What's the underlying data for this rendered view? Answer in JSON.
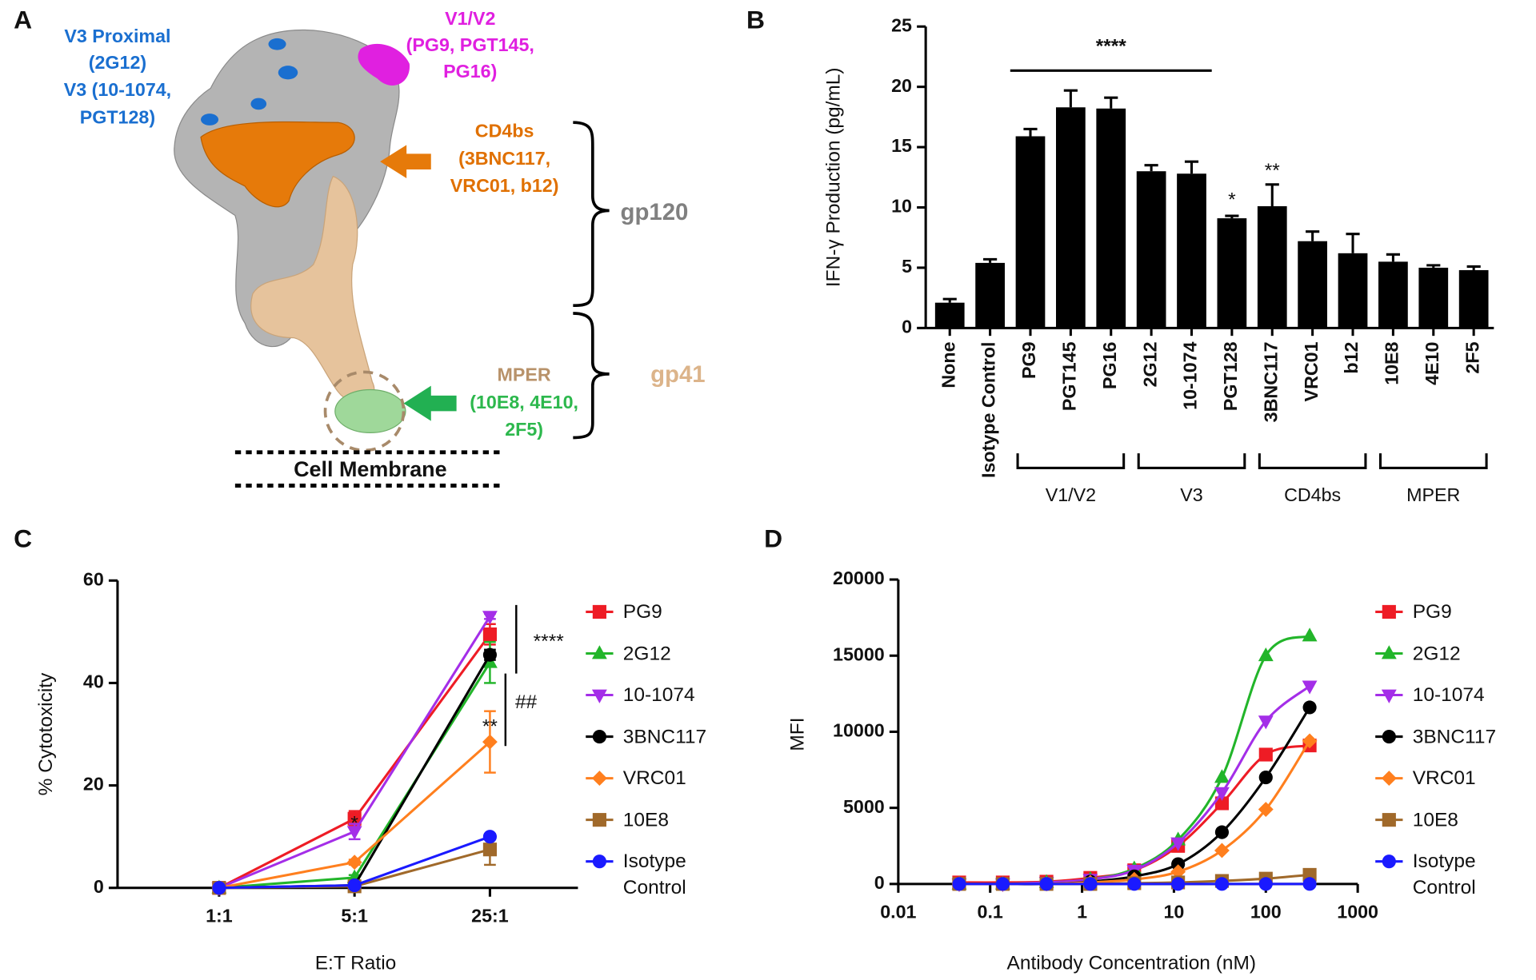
{
  "panel_labels": [
    "A",
    "B",
    "C",
    "D"
  ],
  "diagram": {
    "v3": [
      "V3 Proximal",
      "(2G12)",
      "V3 (10-1074,",
      "PGT128)"
    ],
    "v1v2": [
      "V1/V2",
      "(PG9, PGT145,",
      "PG16)"
    ],
    "cd4bs": [
      "CD4bs",
      "(3BNC117,",
      "VRC01, b12)"
    ],
    "mper": [
      "MPER",
      "(10E8, 4E10,",
      "2F5)"
    ],
    "gp120": "gp120",
    "gp41": "gp41",
    "membrane": "Cell Membrane"
  },
  "chart_data": [
    {
      "type": "bar",
      "y_label": "IFN-γ Production (pg/mL)",
      "categories": [
        "None",
        "Isotype Control",
        "PG9",
        "PGT145",
        "PG16",
        "2G12",
        "10-1074",
        "PGT128",
        "3BNC117",
        "VRC01",
        "b12",
        "10E8",
        "4E10",
        "2F5"
      ],
      "values": [
        2.1,
        5.4,
        15.9,
        18.3,
        18.2,
        13.0,
        12.8,
        9.1,
        10.1,
        7.2,
        6.2,
        5.5,
        5.0,
        4.8
      ],
      "errors": [
        0.3,
        0.3,
        0.6,
        1.4,
        0.9,
        0.5,
        1.0,
        0.2,
        1.8,
        0.8,
        1.6,
        0.6,
        0.2,
        0.3
      ],
      "color": "#000000",
      "ylim": [
        0,
        25
      ],
      "yticks": [
        0,
        5,
        10,
        15,
        20,
        25
      ],
      "groups": [
        {
          "label": "V1/V2",
          "categories": [
            "PG9",
            "PGT145",
            "PG16"
          ]
        },
        {
          "label": "V3",
          "categories": [
            "2G12",
            "10-1074",
            "PGT128"
          ]
        },
        {
          "label": "CD4bs",
          "categories": [
            "3BNC117",
            "VRC01",
            "b12"
          ]
        },
        {
          "label": "MPER",
          "categories": [
            "10E8",
            "4E10",
            "2F5"
          ]
        }
      ],
      "annotations": [
        "****",
        "*",
        "**"
      ]
    },
    {
      "type": "line",
      "x_label": "E:T Ratio",
      "y_label": "% Cytotoxicity",
      "categories": [
        "1:1",
        "5:1",
        "25:1"
      ],
      "ylim": [
        0,
        60
      ],
      "yticks": [
        0,
        20,
        40,
        60
      ],
      "series": [
        {
          "name": "PG9",
          "color": "#ee1c25",
          "marker": "square",
          "values": [
            0,
            13.5,
            49.5
          ],
          "errors": [
            0,
            1.5,
            2
          ]
        },
        {
          "name": "2G12",
          "color": "#22b52a",
          "marker": "triangle-up",
          "values": [
            0,
            2,
            44
          ],
          "errors": [
            0,
            0.5,
            4
          ]
        },
        {
          "name": "10-1074",
          "color": "#a42ee8",
          "marker": "triangle-down",
          "values": [
            0,
            11,
            53
          ],
          "errors": [
            0,
            1.5,
            0.5
          ]
        },
        {
          "name": "3BNC117",
          "color": "#000000",
          "marker": "circle",
          "values": [
            0,
            0.5,
            45.5
          ],
          "errors": [
            0,
            0.3,
            1
          ]
        },
        {
          "name": "VRC01",
          "color": "#ff7f1e",
          "marker": "diamond",
          "values": [
            0,
            5,
            28.5
          ],
          "errors": [
            0,
            0.5,
            6
          ]
        },
        {
          "name": "10E8",
          "color": "#a0692a",
          "marker": "square",
          "values": [
            0,
            0.3,
            7.5
          ],
          "errors": [
            0,
            0.2,
            3
          ]
        },
        {
          "name": "Isotype Control",
          "color": "#1a1aff",
          "marker": "circle",
          "values": [
            0,
            0.5,
            10
          ],
          "errors": [
            0,
            0.2,
            0.5
          ]
        }
      ],
      "annotations": [
        "*",
        "**",
        "****",
        "##"
      ]
    },
    {
      "type": "scatter",
      "x_label": "Antibody Concentration (nM)",
      "y_label": "MFI",
      "xscale": "log",
      "x": [
        0.046,
        0.137,
        0.41,
        1.23,
        3.7,
        11.1,
        33.3,
        100,
        300
      ],
      "xlim": [
        0.01,
        1000
      ],
      "xticks": [
        0.01,
        0.1,
        1,
        10,
        100,
        1000
      ],
      "ylim": [
        0,
        20000
      ],
      "yticks": [
        0,
        5000,
        10000,
        15000,
        20000
      ],
      "series": [
        {
          "name": "PG9",
          "color": "#ee1c25",
          "marker": "square",
          "values": [
            100,
            100,
            150,
            400,
            900,
            2500,
            5300,
            8500,
            9100
          ]
        },
        {
          "name": "2G12",
          "color": "#22b52a",
          "marker": "triangle-up",
          "values": [
            0,
            0,
            100,
            300,
            1000,
            2900,
            7000,
            15000,
            16300
          ]
        },
        {
          "name": "10-1074",
          "color": "#a42ee8",
          "marker": "triangle-down",
          "values": [
            0,
            0,
            100,
            300,
            900,
            2700,
            6000,
            10700,
            13000
          ]
        },
        {
          "name": "3BNC117",
          "color": "#000000",
          "marker": "circle",
          "values": [
            0,
            0,
            0,
            150,
            500,
            1300,
            3400,
            7000,
            11600
          ]
        },
        {
          "name": "VRC01",
          "color": "#ff7f1e",
          "marker": "diamond",
          "values": [
            0,
            0,
            0,
            100,
            300,
            800,
            2200,
            4900,
            9400
          ]
        },
        {
          "name": "10E8",
          "color": "#a0692a",
          "marker": "square",
          "values": [
            0,
            0,
            0,
            0,
            50,
            100,
            200,
            350,
            600
          ]
        },
        {
          "name": "Isotype Control",
          "color": "#1a1aff",
          "marker": "circle",
          "values": [
            0,
            0,
            0,
            0,
            0,
            0,
            0,
            0,
            0
          ]
        }
      ]
    }
  ]
}
